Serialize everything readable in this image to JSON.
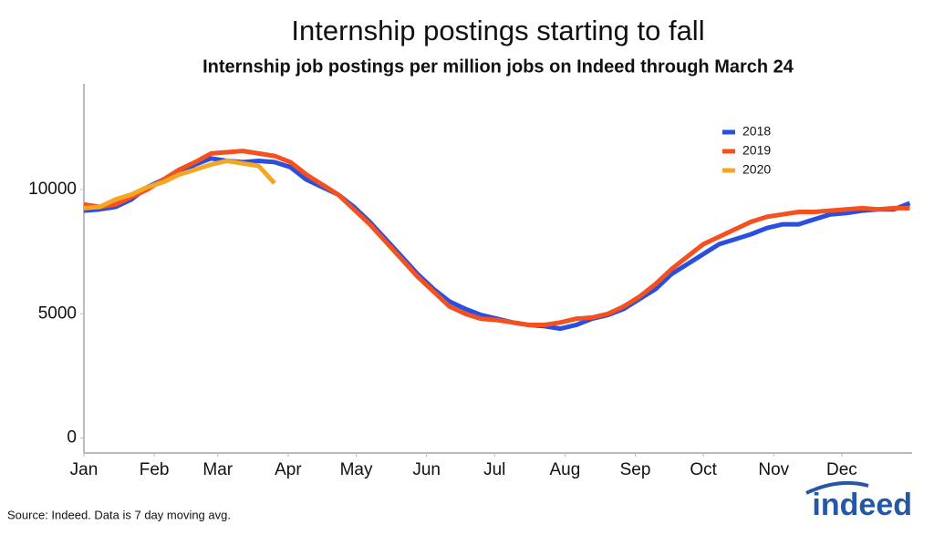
{
  "chart_data": {
    "type": "line",
    "title": "Internship postings starting to fall",
    "subtitle": "Internship job postings per million jobs on Indeed through March 24",
    "source": "Source: Indeed. Data is 7 day moving avg.",
    "logo": "indeed",
    "x": [
      0,
      7,
      14,
      21,
      28,
      35,
      42,
      49,
      56,
      63,
      70,
      77,
      84,
      91,
      98,
      105,
      112,
      119,
      126,
      133,
      140,
      147,
      154,
      161,
      168,
      175,
      182,
      189,
      196,
      203,
      210,
      217,
      224,
      231,
      238,
      245,
      252,
      259,
      266,
      273,
      280,
      287,
      294,
      301,
      308,
      315,
      322,
      329,
      336,
      343,
      350,
      357,
      364
    ],
    "xlim": [
      0,
      365
    ],
    "xticks": [
      {
        "value": 0,
        "label": "Jan"
      },
      {
        "value": 31,
        "label": "Feb"
      },
      {
        "value": 59,
        "label": "Mar"
      },
      {
        "value": 90,
        "label": "Apr"
      },
      {
        "value": 120,
        "label": "May"
      },
      {
        "value": 151,
        "label": "Jun"
      },
      {
        "value": 181,
        "label": "Jul"
      },
      {
        "value": 212,
        "label": "Aug"
      },
      {
        "value": 243,
        "label": "Sep"
      },
      {
        "value": 273,
        "label": "Oct"
      },
      {
        "value": 304,
        "label": "Nov"
      },
      {
        "value": 334,
        "label": "Dec"
      }
    ],
    "ylim": [
      -600,
      14250
    ],
    "yticks": [
      0,
      5000,
      10000
    ],
    "grid": false,
    "legend": "top-right",
    "series": [
      {
        "name": "2018",
        "color": "#2a4fe0",
        "values": [
          9150,
          9200,
          9300,
          9600,
          10100,
          10400,
          10700,
          11000,
          11250,
          11150,
          11100,
          11150,
          11100,
          10900,
          10400,
          10100,
          9800,
          9300,
          8700,
          8000,
          7300,
          6600,
          6000,
          5500,
          5200,
          4950,
          4800,
          4650,
          4550,
          4500,
          4400,
          4550,
          4800,
          4950,
          5200,
          5600,
          6000,
          6600,
          7000,
          7400,
          7800,
          8000,
          8200,
          8450,
          8600,
          8600,
          8800,
          9000,
          9050,
          9150,
          9200,
          9200,
          9450
        ]
      },
      {
        "name": "2019",
        "color": "#f4511e",
        "values": [
          9400,
          9300,
          9400,
          9700,
          10000,
          10400,
          10800,
          11100,
          11450,
          11500,
          11550,
          11450,
          11350,
          11100,
          10600,
          10200,
          9800,
          9200,
          8600,
          7900,
          7200,
          6500,
          5900,
          5300,
          5000,
          4800,
          4750,
          4650,
          4550,
          4550,
          4650,
          4800,
          4850,
          5000,
          5300,
          5700,
          6200,
          6800,
          7300,
          7800,
          8100,
          8400,
          8700,
          8900,
          9000,
          9100,
          9100,
          9150,
          9200,
          9250,
          9200,
          9250,
          9250
        ]
      },
      {
        "name": "2020",
        "color": "#f5a623",
        "values": [
          9250,
          9300,
          9600,
          9800,
          10100,
          10300,
          10600,
          10800,
          11000,
          11150,
          11050,
          10950,
          10250,
          null,
          null,
          null,
          null,
          null,
          null,
          null,
          null,
          null,
          null,
          null,
          null,
          null,
          null,
          null,
          null,
          null,
          null,
          null,
          null,
          null,
          null,
          null,
          null,
          null,
          null,
          null,
          null,
          null,
          null,
          null,
          null,
          null,
          null,
          null,
          null,
          null,
          null,
          null,
          null
        ]
      }
    ]
  }
}
